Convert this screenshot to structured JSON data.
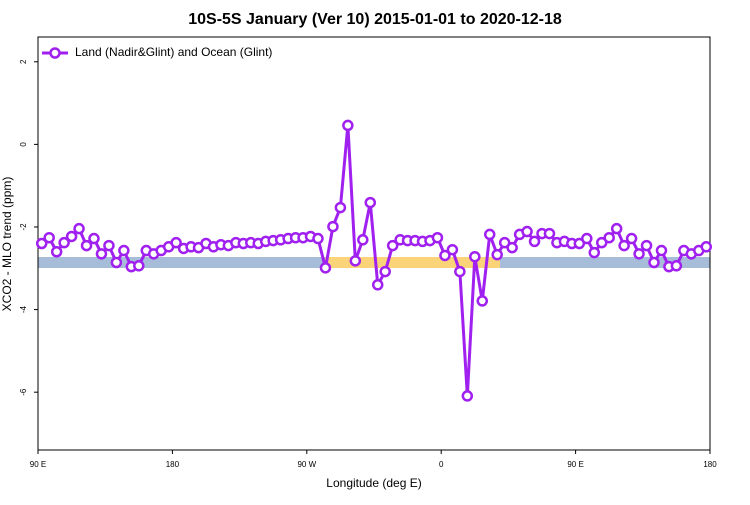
{
  "chart_data": {
    "type": "line",
    "title": "10S-5S January (Ver 10)   2015-01-01 to 2020-12-18",
    "xlabel": "Longitude (deg E)",
    "ylabel": "XCO2 - MLO trend (ppm)",
    "xlim": [
      90,
      540
    ],
    "ylim": [
      -7.4,
      2.6
    ],
    "xticks": [
      {
        "value": 90,
        "label": "90 E"
      },
      180,
      {
        "value": 270,
        "label": "90 W"
      },
      {
        "value": 360,
        "label": "0"
      },
      {
        "value": 450,
        "label": "90 E"
      },
      {
        "value": 540,
        "label": "180"
      }
    ],
    "yticks": [
      2,
      0,
      -2,
      -4,
      -6
    ],
    "legend": "upper left",
    "x": [
      92.5,
      97.5,
      102.5,
      107.5,
      112.5,
      117.5,
      122.5,
      127.5,
      132.5,
      137.5,
      142.5,
      147.5,
      152.5,
      157.5,
      162.5,
      167.5,
      172.5,
      177.5,
      182.5,
      187.5,
      192.5,
      197.5,
      202.5,
      207.5,
      212.5,
      217.5,
      222.5,
      227.5,
      232.5,
      237.5,
      242.5,
      247.5,
      252.5,
      257.5,
      262.5,
      267.5,
      272.5,
      277.5,
      282.5,
      287.5,
      292.5,
      297.5,
      302.5,
      307.5,
      312.5,
      317.5,
      322.5,
      327.5,
      332.5,
      337.5,
      342.5,
      347.5,
      352.5,
      357.5,
      362.5,
      367.5,
      372.5,
      377.5,
      382.5,
      387.5,
      392.5,
      397.5,
      402.5,
      407.5,
      412.5,
      417.5,
      422.5,
      427.5,
      432.5,
      437.5,
      442.5,
      447.5,
      452.5,
      457.5,
      462.5,
      467.5,
      472.5,
      477.5,
      482.5,
      487.5,
      492.5,
      497.5,
      502.5,
      507.5,
      512.5,
      517.5,
      522.5,
      527.5,
      532.5,
      537.5
    ],
    "series": [
      {
        "name": "Land (Nadir&Glint) and Ocean (Glint)",
        "color": "#a020f0",
        "values": [
          -2.4,
          -2.26,
          -2.6,
          -2.38,
          -2.23,
          -2.04,
          -2.45,
          -2.28,
          -2.65,
          -2.45,
          -2.86,
          -2.57,
          -2.96,
          -2.94,
          -2.57,
          -2.65,
          -2.57,
          -2.48,
          -2.38,
          -2.52,
          -2.48,
          -2.5,
          -2.4,
          -2.48,
          -2.43,
          -2.45,
          -2.38,
          -2.4,
          -2.38,
          -2.4,
          -2.35,
          -2.33,
          -2.31,
          -2.28,
          -2.26,
          -2.26,
          -2.23,
          -2.28,
          -2.99,
          -1.99,
          -1.53,
          0.46,
          -2.82,
          -2.31,
          -1.41,
          -3.4,
          -3.08,
          -2.45,
          -2.31,
          -2.33,
          -2.33,
          -2.35,
          -2.33,
          -2.26,
          -2.69,
          -2.55,
          -3.08,
          -6.09,
          -2.72,
          -3.79,
          -2.18,
          -2.67,
          -2.38,
          -2.5,
          -2.18,
          -2.11,
          -2.35,
          -2.16,
          -2.16,
          -2.38,
          -2.35,
          -2.4,
          -2.4,
          -2.28,
          -2.62,
          -2.38,
          -2.26,
          -2.04,
          -2.45,
          -2.28,
          -2.65,
          -2.45,
          -2.86,
          -2.57,
          -2.96,
          -2.94,
          -2.57,
          -2.65,
          -2.57,
          -2.48
        ]
      }
    ]
  }
}
